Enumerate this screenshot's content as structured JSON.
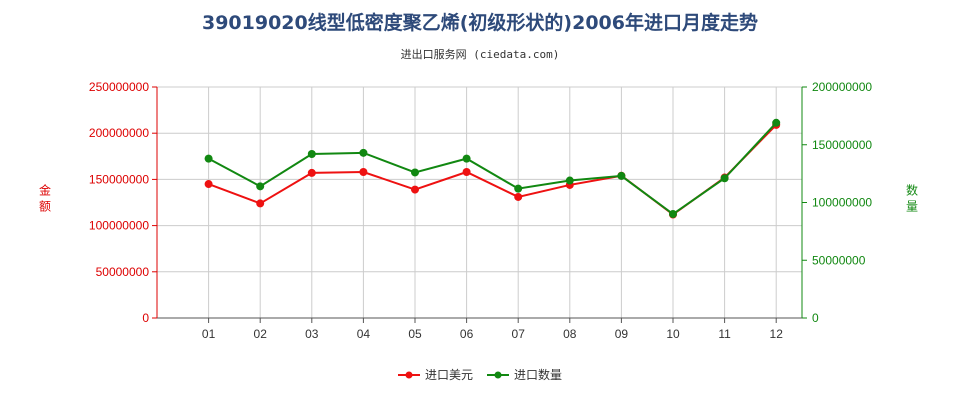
{
  "chart_data": {
    "type": "line",
    "title": "39019020线型低密度聚乙烯(初级形状的)2006年进口月度走势",
    "subtitle": "进出口服务网 (ciedata.com)",
    "categories": [
      "01",
      "02",
      "03",
      "04",
      "05",
      "06",
      "07",
      "08",
      "09",
      "10",
      "11",
      "12"
    ],
    "y_left": {
      "label": "金额",
      "ylim": [
        0,
        250000000
      ],
      "ticks": [
        "0",
        "50000000",
        "100000000",
        "150000000",
        "200000000",
        "250000000"
      ],
      "color": "#dd0000"
    },
    "y_right": {
      "label": "数量",
      "ylim": [
        0,
        200000000
      ],
      "ticks": [
        "0",
        "50000000",
        "100000000",
        "150000000",
        "200000000"
      ],
      "color": "#118811"
    },
    "series": [
      {
        "name": "进口美元",
        "axis": "left",
        "color": "#ee1111",
        "values": [
          145000000,
          124000000,
          157000000,
          158000000,
          139000000,
          158000000,
          131000000,
          144000000,
          154000000,
          112000000,
          152000000,
          209000000
        ]
      },
      {
        "name": "进口数量",
        "axis": "right",
        "color": "#118811",
        "values": [
          138000000,
          114000000,
          142000000,
          143000000,
          126000000,
          138000000,
          112000000,
          119000000,
          123000000,
          90000000,
          121000000,
          169000000
        ]
      }
    ],
    "grid": true,
    "legend_position": "bottom-center"
  }
}
